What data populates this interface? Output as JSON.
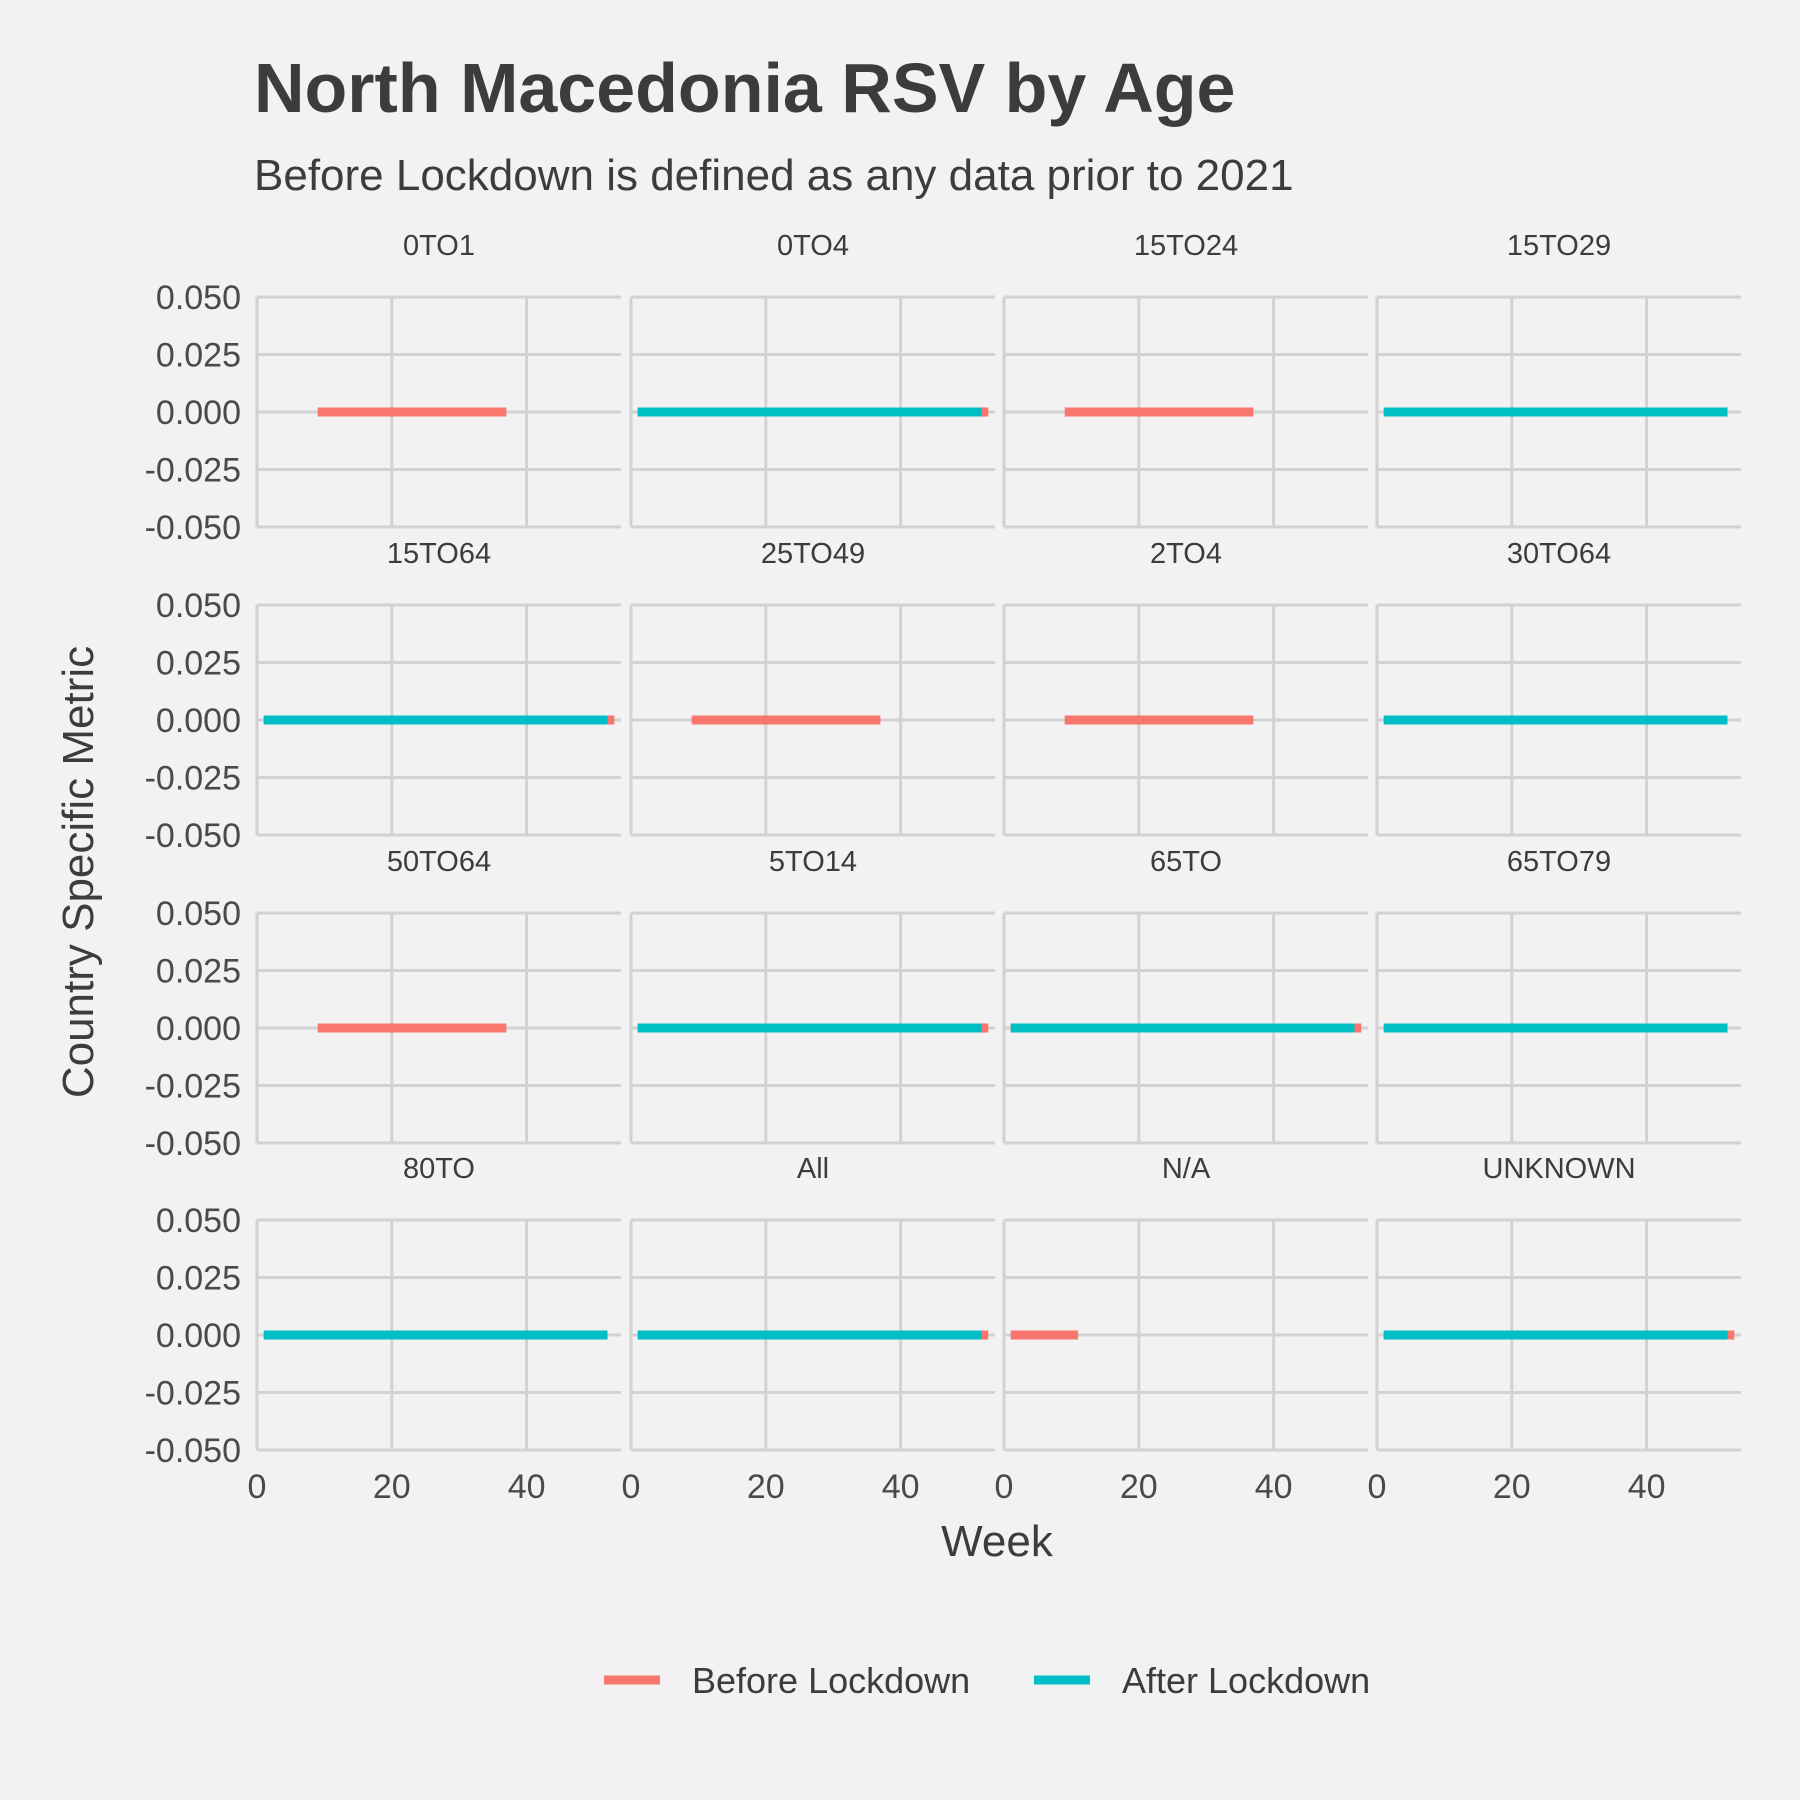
{
  "chart_data": {
    "type": "line",
    "title": "North Macedonia RSV by Age",
    "subtitle": "Before Lockdown is defined as any data prior to 2021",
    "xlabel": "Week",
    "ylabel": "Country Specific Metric",
    "xlim": [
      0,
      54
    ],
    "ylim": [
      -0.05,
      0.05
    ],
    "x_ticks": [
      0,
      20,
      40
    ],
    "y_ticks": [
      -0.05,
      -0.025,
      0,
      0.025,
      0.05
    ],
    "x_tick_labels": [
      "0",
      "20",
      "40"
    ],
    "y_tick_labels": [
      "-0.050",
      "-0.025",
      "0.000",
      "0.025",
      "0.050"
    ],
    "legend": {
      "position": "bottom",
      "entries": [
        "Before Lockdown",
        "After Lockdown"
      ]
    },
    "series_colors": {
      "Before Lockdown": "#F8766D",
      "After Lockdown": "#00BFC4"
    },
    "grid": true,
    "facets": [
      {
        "label": "0TO1",
        "before": [
          [
            9,
            0
          ],
          [
            37,
            0
          ]
        ],
        "after": null
      },
      {
        "label": "0TO4",
        "before": [
          [
            1,
            0
          ],
          [
            53,
            0
          ]
        ],
        "after": [
          [
            1,
            0
          ],
          [
            52,
            0
          ]
        ]
      },
      {
        "label": "15TO24",
        "before": [
          [
            9,
            0
          ],
          [
            37,
            0
          ]
        ],
        "after": null
      },
      {
        "label": "15TO29",
        "before": null,
        "after": [
          [
            1,
            0
          ],
          [
            52,
            0
          ]
        ]
      },
      {
        "label": "15TO64",
        "before": [
          [
            1,
            0
          ],
          [
            53,
            0
          ]
        ],
        "after": [
          [
            1,
            0
          ],
          [
            52,
            0
          ]
        ]
      },
      {
        "label": "25TO49",
        "before": [
          [
            9,
            0
          ],
          [
            37,
            0
          ]
        ],
        "after": null
      },
      {
        "label": "2TO4",
        "before": [
          [
            9,
            0
          ],
          [
            37,
            0
          ]
        ],
        "after": null
      },
      {
        "label": "30TO64",
        "before": null,
        "after": [
          [
            1,
            0
          ],
          [
            52,
            0
          ]
        ]
      },
      {
        "label": "50TO64",
        "before": [
          [
            9,
            0
          ],
          [
            37,
            0
          ]
        ],
        "after": null
      },
      {
        "label": "5TO14",
        "before": [
          [
            1,
            0
          ],
          [
            53,
            0
          ]
        ],
        "after": [
          [
            1,
            0
          ],
          [
            52,
            0
          ]
        ]
      },
      {
        "label": "65TO",
        "before": [
          [
            1,
            0
          ],
          [
            53,
            0
          ]
        ],
        "after": [
          [
            1,
            0
          ],
          [
            52,
            0
          ]
        ]
      },
      {
        "label": "65TO79",
        "before": null,
        "after": [
          [
            1,
            0
          ],
          [
            52,
            0
          ]
        ]
      },
      {
        "label": "80TO",
        "before": [
          [
            9,
            0
          ],
          [
            37,
            0
          ]
        ],
        "after": [
          [
            1,
            0
          ],
          [
            52,
            0
          ]
        ]
      },
      {
        "label": "All",
        "before": [
          [
            1,
            0
          ],
          [
            53,
            0
          ]
        ],
        "after": [
          [
            1,
            0
          ],
          [
            52,
            0
          ]
        ]
      },
      {
        "label": "N/A",
        "before": [
          [
            1,
            0
          ],
          [
            11,
            0
          ]
        ],
        "after": null
      },
      {
        "label": "UNKNOWN",
        "before": [
          [
            1,
            0
          ],
          [
            53,
            0
          ]
        ],
        "after": [
          [
            1,
            0
          ],
          [
            52,
            0
          ]
        ]
      }
    ]
  }
}
